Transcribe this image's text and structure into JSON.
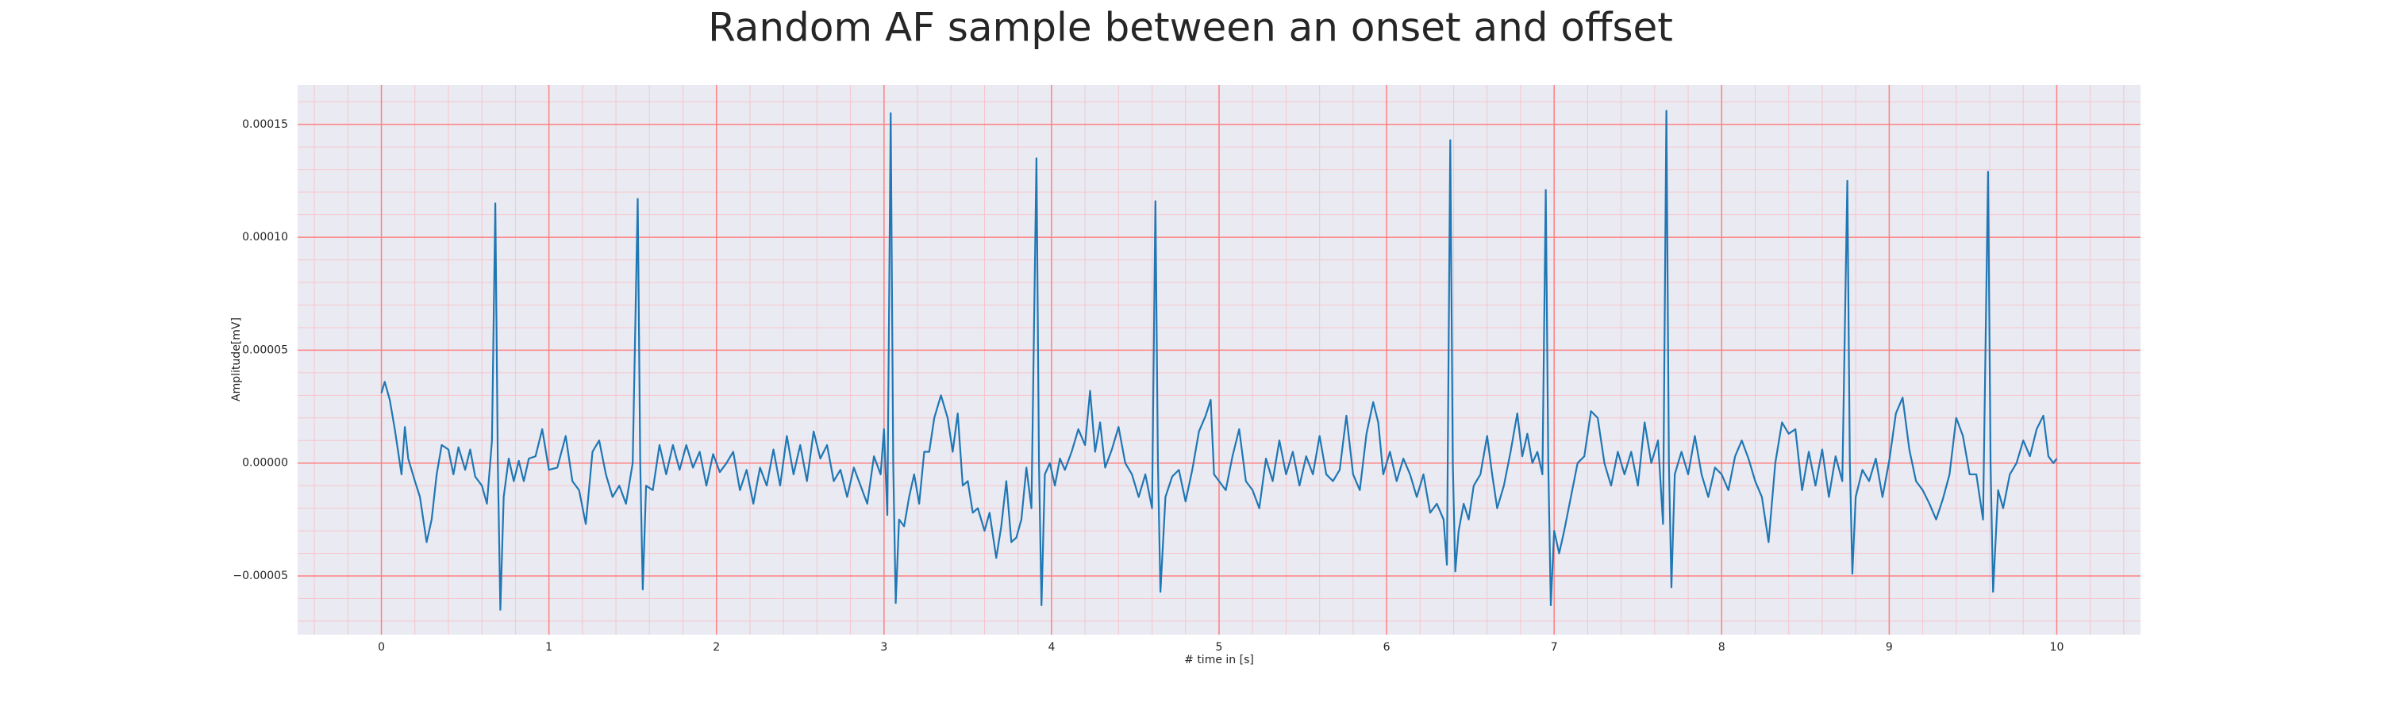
{
  "chart_data": {
    "type": "line",
    "title": "Random AF sample between an onset and offset",
    "x_label": "# time in [s]",
    "y_label": "Amplitude[mV]",
    "color": "#1f77b4",
    "background": "#eaeaf2",
    "grid": true,
    "grid_color": "#ff8080",
    "minor_grid": {
      "x": 0.2,
      "y": 1e-05,
      "color": "#f6c6cc"
    },
    "xlim": [
      -0.5,
      10.5
    ],
    "ylim": [
      -7.6e-05,
      0.0001675
    ],
    "xticks": [
      0,
      1,
      2,
      3,
      4,
      5,
      6,
      7,
      8,
      9,
      10
    ],
    "yticks": [
      {
        "value": -5e-05,
        "label": "−0.00005"
      },
      {
        "value": 0,
        "label": "0.00000"
      },
      5e-05,
      {
        "value": 0.0001,
        "label": "0.00010"
      },
      0.00015
    ],
    "x": [
      0,
      0.02,
      0.05,
      0.08,
      0.1,
      0.12,
      0.14,
      0.16,
      0.2,
      0.23,
      0.27,
      0.3,
      0.33,
      0.36,
      0.4,
      0.43,
      0.46,
      0.5,
      0.53,
      0.56,
      0.6,
      0.63,
      0.66,
      0.68,
      0.695,
      0.71,
      0.73,
      0.76,
      0.79,
      0.82,
      0.85,
      0.88,
      0.92,
      0.96,
      1.0,
      1.05,
      1.1,
      1.14,
      1.18,
      1.22,
      1.26,
      1.3,
      1.34,
      1.38,
      1.42,
      1.46,
      1.5,
      1.53,
      1.545,
      1.56,
      1.58,
      1.62,
      1.66,
      1.7,
      1.74,
      1.78,
      1.82,
      1.86,
      1.9,
      1.94,
      1.98,
      2.02,
      2.06,
      2.1,
      2.14,
      2.18,
      2.22,
      2.26,
      2.3,
      2.34,
      2.38,
      2.42,
      2.46,
      2.5,
      2.54,
      2.58,
      2.62,
      2.66,
      2.7,
      2.74,
      2.78,
      2.82,
      2.86,
      2.9,
      2.94,
      2.98,
      3.0,
      3.02,
      3.04,
      3.055,
      3.07,
      3.09,
      3.12,
      3.15,
      3.18,
      3.21,
      3.24,
      3.27,
      3.3,
      3.34,
      3.38,
      3.41,
      3.44,
      3.47,
      3.5,
      3.53,
      3.56,
      3.6,
      3.63,
      3.67,
      3.7,
      3.73,
      3.76,
      3.79,
      3.82,
      3.85,
      3.88,
      3.91,
      3.925,
      3.94,
      3.96,
      3.99,
      4.02,
      4.05,
      4.08,
      4.12,
      4.16,
      4.2,
      4.23,
      4.26,
      4.29,
      4.32,
      4.36,
      4.4,
      4.44,
      4.48,
      4.52,
      4.56,
      4.6,
      4.62,
      4.635,
      4.65,
      4.68,
      4.72,
      4.76,
      4.8,
      4.84,
      4.88,
      4.92,
      4.95,
      4.97,
      5.0,
      5.04,
      5.08,
      5.12,
      5.16,
      5.2,
      5.24,
      5.28,
      5.32,
      5.36,
      5.4,
      5.44,
      5.48,
      5.52,
      5.56,
      5.6,
      5.64,
      5.68,
      5.72,
      5.76,
      5.8,
      5.84,
      5.88,
      5.92,
      5.95,
      5.98,
      6.02,
      6.06,
      6.1,
      6.14,
      6.18,
      6.22,
      6.26,
      6.3,
      6.34,
      6.36,
      6.38,
      6.395,
      6.41,
      6.43,
      6.46,
      6.49,
      6.52,
      6.56,
      6.6,
      6.63,
      6.66,
      6.7,
      6.74,
      6.78,
      6.81,
      6.84,
      6.87,
      6.9,
      6.93,
      6.95,
      6.965,
      6.98,
      7.0,
      7.03,
      7.06,
      7.1,
      7.14,
      7.18,
      7.22,
      7.26,
      7.3,
      7.34,
      7.38,
      7.42,
      7.46,
      7.5,
      7.54,
      7.58,
      7.62,
      7.65,
      7.67,
      7.685,
      7.7,
      7.72,
      7.76,
      7.8,
      7.84,
      7.88,
      7.92,
      7.96,
      8.0,
      8.04,
      8.08,
      8.12,
      8.16,
      8.2,
      8.24,
      8.28,
      8.32,
      8.36,
      8.4,
      8.44,
      8.48,
      8.52,
      8.56,
      8.6,
      8.64,
      8.68,
      8.72,
      8.75,
      8.765,
      8.78,
      8.8,
      8.84,
      8.88,
      8.92,
      8.96,
      9.0,
      9.04,
      9.08,
      9.12,
      9.16,
      9.2,
      9.24,
      9.28,
      9.32,
      9.36,
      9.4,
      9.44,
      9.48,
      9.52,
      9.56,
      9.59,
      9.605,
      9.62,
      9.65,
      9.68,
      9.72,
      9.76,
      9.8,
      9.84,
      9.88,
      9.92,
      9.95,
      9.98,
      10.0
    ],
    "values": [
      3.1e-05,
      3.6e-05,
      2.8e-05,
      1.5e-05,
      5e-06,
      -5e-06,
      1.6e-05,
      2e-06,
      -8e-06,
      -1.5e-05,
      -3.5e-05,
      -2.5e-05,
      -5e-06,
      8e-06,
      6e-06,
      -5e-06,
      7e-06,
      -3e-06,
      6e-06,
      -6e-06,
      -1e-05,
      -1.8e-05,
      1e-05,
      0.000115,
      0,
      -6.5e-05,
      -1.5e-05,
      2e-06,
      -8e-06,
      1e-06,
      -8e-06,
      2e-06,
      3e-06,
      1.5e-05,
      -3e-06,
      -2e-06,
      1.2e-05,
      -8e-06,
      -1.2e-05,
      -2.7e-05,
      5e-06,
      1e-05,
      -5e-06,
      -1.5e-05,
      -1e-05,
      -1.8e-05,
      0,
      0.000117,
      0,
      -5.6e-05,
      -1e-05,
      -1.2e-05,
      8e-06,
      -5e-06,
      8e-06,
      -3e-06,
      8e-06,
      -2e-06,
      5e-06,
      -1e-05,
      4e-06,
      -4e-06,
      0,
      5e-06,
      -1.2e-05,
      -3e-06,
      -1.8e-05,
      -2e-06,
      -1e-05,
      6e-06,
      -1e-05,
      1.2e-05,
      -5e-06,
      8e-06,
      -8e-06,
      1.4e-05,
      2e-06,
      8e-06,
      -8e-06,
      -3e-06,
      -1.5e-05,
      -2e-06,
      -1e-05,
      -1.8e-05,
      3e-06,
      -5e-06,
      1.5e-05,
      -2.3e-05,
      0.000155,
      0,
      -6.2e-05,
      -2.5e-05,
      -2.8e-05,
      -1.5e-05,
      -5e-06,
      -1.8e-05,
      5e-06,
      5e-06,
      2e-05,
      3e-05,
      2e-05,
      5e-06,
      2.2e-05,
      -1e-05,
      -8e-06,
      -2.2e-05,
      -2e-05,
      -3e-05,
      -2.2e-05,
      -4.2e-05,
      -2.8e-05,
      -8e-06,
      -3.5e-05,
      -3.3e-05,
      -2.5e-05,
      -2e-06,
      -2e-05,
      0.000135,
      0,
      -6.3e-05,
      -5e-06,
      0,
      -1e-05,
      2e-06,
      -3e-06,
      5e-06,
      1.5e-05,
      8e-06,
      3.2e-05,
      5e-06,
      1.8e-05,
      -2e-06,
      6e-06,
      1.6e-05,
      0,
      -5e-06,
      -1.5e-05,
      -5e-06,
      -2e-05,
      0.000116,
      0,
      -5.7e-05,
      -1.5e-05,
      -6e-06,
      -3e-06,
      -1.7e-05,
      -3e-06,
      1.4e-05,
      2.1e-05,
      2.8e-05,
      -5e-06,
      -8e-06,
      -1.2e-05,
      3e-06,
      1.5e-05,
      -8e-06,
      -1.2e-05,
      -2e-05,
      2e-06,
      -8e-06,
      1e-05,
      -5e-06,
      5e-06,
      -1e-05,
      3e-06,
      -5e-06,
      1.2e-05,
      -5e-06,
      -8e-06,
      -3e-06,
      2.1e-05,
      -5e-06,
      -1.2e-05,
      1.3e-05,
      2.7e-05,
      1.8e-05,
      -5e-06,
      5e-06,
      -8e-06,
      2e-06,
      -5e-06,
      -1.5e-05,
      -5e-06,
      -2.2e-05,
      -1.8e-05,
      -2.5e-05,
      -4.5e-05,
      0.000143,
      0,
      -4.8e-05,
      -3e-05,
      -1.8e-05,
      -2.5e-05,
      -1e-05,
      -5e-06,
      1.2e-05,
      -5e-06,
      -2e-05,
      -1e-05,
      5e-06,
      2.2e-05,
      3e-06,
      1.3e-05,
      0,
      5e-06,
      -5e-06,
      0.000121,
      0,
      -6.3e-05,
      -3e-05,
      -4e-05,
      -3e-05,
      -1.5e-05,
      0,
      3e-06,
      2.3e-05,
      2e-05,
      0,
      -1e-05,
      5e-06,
      -5e-06,
      5e-06,
      -1e-05,
      1.8e-05,
      0,
      1e-05,
      -2.7e-05,
      0.000156,
      0,
      -5.5e-05,
      -5e-06,
      5e-06,
      -5e-06,
      1.2e-05,
      -5e-06,
      -1.5e-05,
      -2e-06,
      -5e-06,
      -1.2e-05,
      3e-06,
      1e-05,
      2e-06,
      -8e-06,
      -1.5e-05,
      -3.5e-05,
      0,
      1.8e-05,
      1.3e-05,
      1.5e-05,
      -1.2e-05,
      5e-06,
      -1e-05,
      6e-06,
      -1.5e-05,
      3e-06,
      -8e-06,
      0.000125,
      0,
      -4.9e-05,
      -1.5e-05,
      -3e-06,
      -8e-06,
      2e-06,
      -1.5e-05,
      1e-06,
      2.2e-05,
      2.9e-05,
      6e-06,
      -8e-06,
      -1.2e-05,
      -1.8e-05,
      -2.5e-05,
      -1.6e-05,
      -5e-06,
      2e-05,
      1.2e-05,
      -5e-06,
      -5e-06,
      -2.5e-05,
      0.000129,
      0,
      -5.7e-05,
      -1.2e-05,
      -2e-05,
      -5e-06,
      0,
      1e-05,
      3e-06,
      1.5e-05,
      2.1e-05,
      3e-06,
      0,
      2e-06
    ]
  }
}
